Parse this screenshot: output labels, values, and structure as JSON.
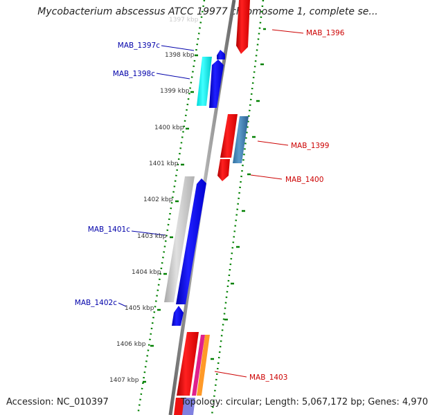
{
  "title": "Mycobacterium abscessus ATCC 19977 chromosome 1, complete se...",
  "top_faded_label": "1397 kbp",
  "ticks": [
    "1398 kbp",
    "1399 kbp",
    "1400 kbp",
    "1401 kbp",
    "1402 kbp",
    "1403 kbp",
    "1404 kbp",
    "1405 kbp",
    "1406 kbp",
    "1407 kbp"
  ],
  "genes": {
    "MAB_1396": "MAB_1396",
    "MAB_1397c": "MAB_1397c",
    "MAB_1398c": "MAB_1398c",
    "MAB_1399": "MAB_1399",
    "MAB_1400": "MAB_1400",
    "MAB_1401c": "MAB_1401c",
    "MAB_1402c": "MAB_1402c",
    "MAB_1403": "MAB_1403"
  },
  "footer": {
    "accession": "Accession: NC_010397",
    "topology": "Topology: circular; Length: 5,067,172 bp; Genes: 4,970"
  },
  "colors": {
    "forward_gene": "#ff0000",
    "reverse_gene": "#0000ff",
    "forward_label": "#cc0000",
    "reverse_label": "#0000aa",
    "tick": "#008000",
    "backbone": "#888888"
  }
}
